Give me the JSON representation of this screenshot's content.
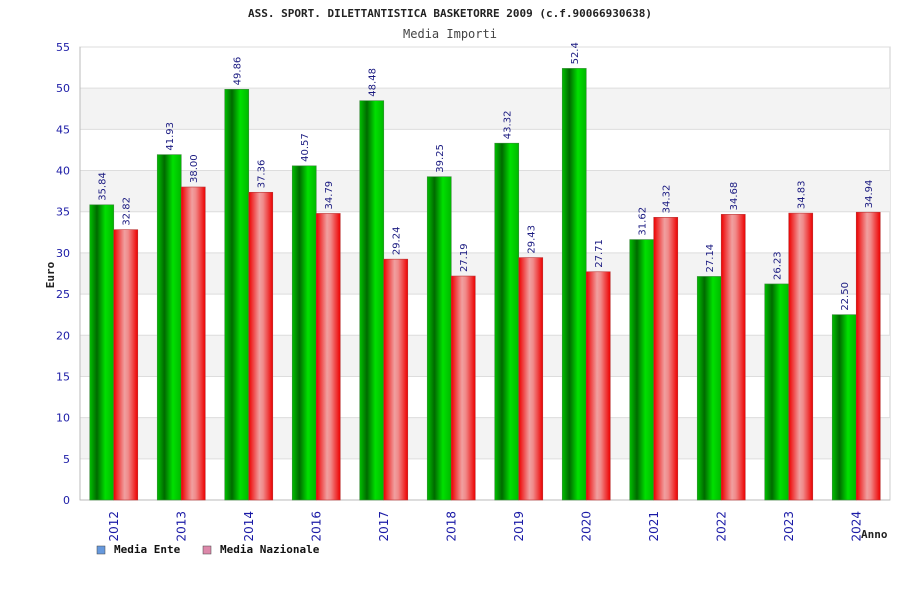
{
  "chart_data": {
    "type": "bar",
    "title": "ASS. SPORT. DILETTANTISTICA BASKETORRE 2009 (c.f.90066930638)",
    "subtitle": "Media Importi",
    "xlabel": "Anno",
    "ylabel": "Euro",
    "ylim": [
      0,
      55
    ],
    "yticks": [
      0,
      5,
      10,
      15,
      20,
      25,
      30,
      35,
      40,
      45,
      50,
      55
    ],
    "grid": true,
    "legend_position": "bottom-left",
    "categories": [
      "2012",
      "2013",
      "2014",
      "2016",
      "2017",
      "2018",
      "2019",
      "2020",
      "2021",
      "2022",
      "2023",
      "2024"
    ],
    "series": [
      {
        "name": "Media Ente",
        "color": "#00b000",
        "legend_color": "#6699dd",
        "values": [
          35.84,
          41.93,
          49.86,
          40.57,
          48.48,
          39.25,
          43.32,
          52.4,
          31.62,
          27.14,
          26.23,
          22.5
        ],
        "labels": [
          "35.84",
          "41.93",
          "49.86",
          "40.57",
          "48.48",
          "39.25",
          "43.32",
          "52.4",
          "31.62",
          "27.14",
          "26.23",
          "22.50"
        ]
      },
      {
        "name": "Media Nazionale",
        "color": "#ee1111",
        "legend_color": "#dd88aa",
        "values": [
          32.82,
          38.0,
          37.36,
          34.79,
          29.24,
          27.19,
          29.43,
          27.71,
          34.32,
          34.68,
          34.83,
          34.94
        ],
        "labels": [
          "32.82",
          "38.00",
          "37.36",
          "34.79",
          "29.24",
          "27.19",
          "29.43",
          "27.71",
          "34.32",
          "34.68",
          "34.83",
          "34.94"
        ]
      }
    ]
  }
}
